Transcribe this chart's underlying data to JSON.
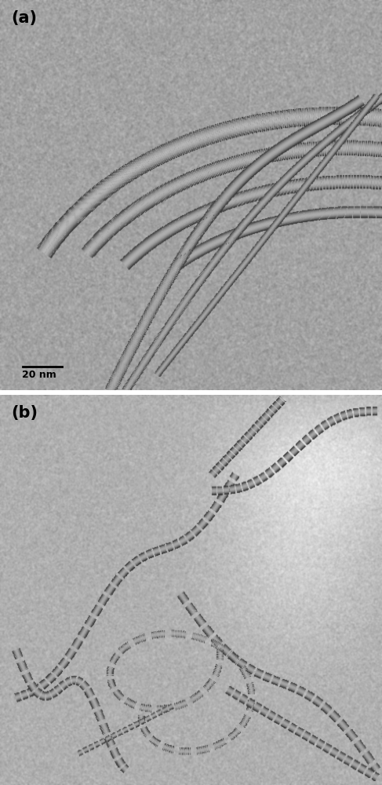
{
  "label_a": "(a)",
  "label_b": "(b)",
  "scale_bar_text": "20 nm",
  "label_fontsize": 15,
  "scale_fontsize": 9,
  "fig_width": 4.87,
  "fig_height": 10.0,
  "dpi": 100,
  "panel_a_noise_mean": 162,
  "panel_a_noise_std": 20,
  "panel_b_noise_mean": 175,
  "panel_b_noise_std": 16,
  "tube_dark": 60,
  "tube_light": 195
}
